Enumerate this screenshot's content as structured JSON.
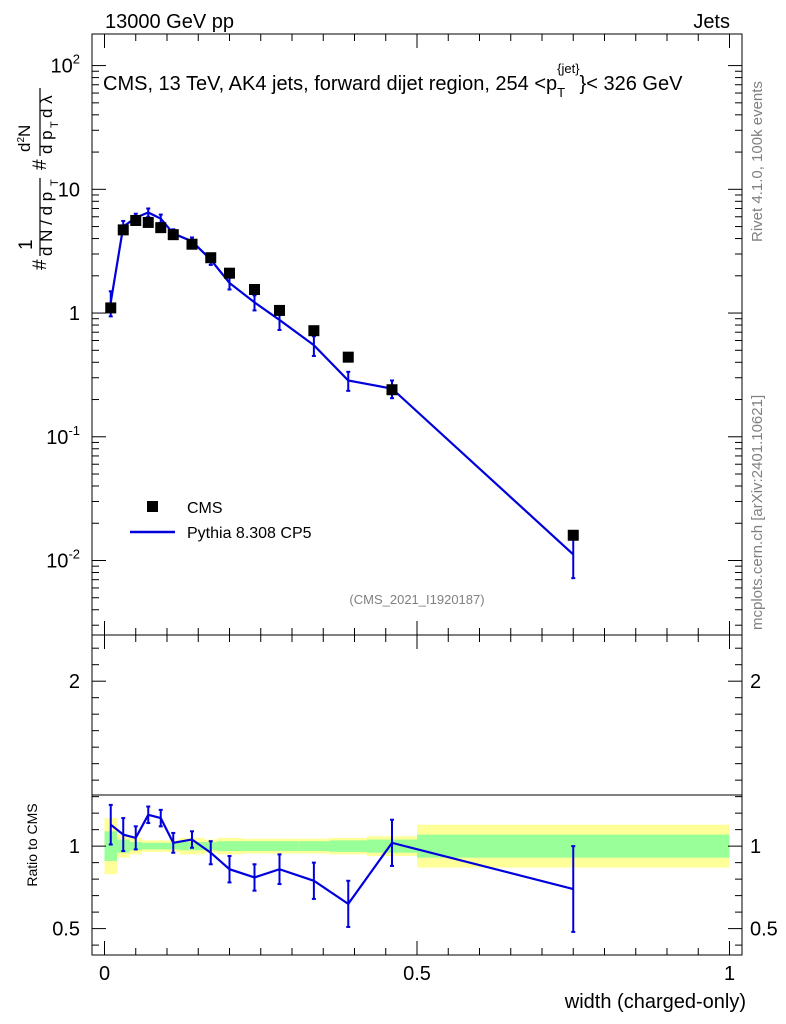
{
  "header": {
    "left": "13000 GeV pp",
    "right": "Jets"
  },
  "side": {
    "rivet": "Rivet 4.1.0,  100k events",
    "mcplots": "mcplots.cern.ch [arXiv:2401.10621]"
  },
  "chart_data": {
    "type": "scatter",
    "title": "CMS, 13 TeV, AK4 jets, forward dijet region, 254 <p_T^{jet}< 326 GeV",
    "title_parts": {
      "prefix": "CMS, 13 TeV, AK4 jets, forward dijet region, 254 <p",
      "sub": "T",
      "sup": "{jet}",
      "suffix": "}< 326 GeV"
    },
    "analysis_tag": "(CMS_2021_I1920187)",
    "xlabel": "width (charged-only)",
    "ylabel_main": "1/(dN/dp_T) d²N/(dp_T dλ)",
    "ylabel_ratio": "Ratio to CMS",
    "xlim": [
      -0.02,
      1.02
    ],
    "ylim_main": [
      0.0025,
      180
    ],
    "ylim_ratio": [
      0.34,
      2.28
    ],
    "x_ticks": [
      "0",
      "0.5",
      "1"
    ],
    "y_ticks_main": [
      {
        "base": "10",
        "exp": "-2"
      },
      {
        "base": "10",
        "exp": "-1"
      },
      {
        "base": "1",
        "exp": ""
      },
      {
        "base": "10",
        "exp": ""
      },
      {
        "base": "10",
        "exp": "2"
      }
    ],
    "y_ticks_ratio": [
      "0.5",
      "1",
      "2"
    ],
    "legend": {
      "position": "bottom-left",
      "entries": [
        {
          "label": "CMS",
          "marker": "square",
          "color": "#000000"
        },
        {
          "label": "Pythia 8.308 CP5",
          "marker": "line",
          "color": "#0000dd"
        }
      ]
    },
    "series": [
      {
        "name": "CMS",
        "color": "#000000",
        "x": [
          0.01,
          0.03,
          0.05,
          0.07,
          0.09,
          0.11,
          0.14,
          0.17,
          0.2,
          0.24,
          0.28,
          0.335,
          0.39,
          0.46,
          0.75
        ],
        "y": [
          1.1,
          4.7,
          5.6,
          5.4,
          4.9,
          4.3,
          3.6,
          2.8,
          2.1,
          1.55,
          1.05,
          0.72,
          0.44,
          0.24,
          0.016
        ]
      },
      {
        "name": "Pythia 8.308 CP5",
        "color": "#0000dd",
        "x": [
          0.01,
          0.03,
          0.05,
          0.07,
          0.09,
          0.11,
          0.14,
          0.17,
          0.2,
          0.24,
          0.28,
          0.335,
          0.39,
          0.46,
          0.75
        ],
        "y": [
          1.22,
          5.0,
          5.9,
          6.5,
          5.8,
          4.4,
          3.8,
          2.7,
          1.75,
          1.22,
          0.88,
          0.55,
          0.285,
          0.245,
          0.0112
        ],
        "yerr": [
          0.28,
          0.55,
          0.45,
          0.5,
          0.45,
          0.35,
          0.28,
          0.25,
          0.2,
          0.17,
          0.15,
          0.1,
          0.05,
          0.04,
          0.004
        ],
        "ratio": [
          1.13,
          1.07,
          1.05,
          1.19,
          1.17,
          1.02,
          1.04,
          0.96,
          0.86,
          0.81,
          0.86,
          0.79,
          0.65,
          1.02,
          0.74
        ],
        "ratio_err": [
          0.12,
          0.1,
          0.07,
          0.05,
          0.05,
          0.06,
          0.05,
          0.07,
          0.08,
          0.08,
          0.09,
          0.11,
          0.14,
          0.14,
          0.26
        ]
      }
    ],
    "uncertainty_bands": {
      "x_edges": [
        0,
        0.02,
        0.04,
        0.06,
        0.08,
        0.1,
        0.12,
        0.16,
        0.18,
        0.22,
        0.26,
        0.31,
        0.36,
        0.42,
        0.5,
        1.0
      ],
      "inner_green": [
        0.09,
        0.04,
        0.025,
        0.02,
        0.02,
        0.02,
        0.025,
        0.025,
        0.03,
        0.03,
        0.03,
        0.03,
        0.035,
        0.04,
        0.07
      ],
      "outer_yellow": [
        0.17,
        0.07,
        0.05,
        0.035,
        0.035,
        0.035,
        0.05,
        0.04,
        0.05,
        0.045,
        0.045,
        0.045,
        0.05,
        0.06,
        0.13
      ],
      "inner_color": "#99ff99",
      "outer_color": "#ffff99"
    }
  }
}
